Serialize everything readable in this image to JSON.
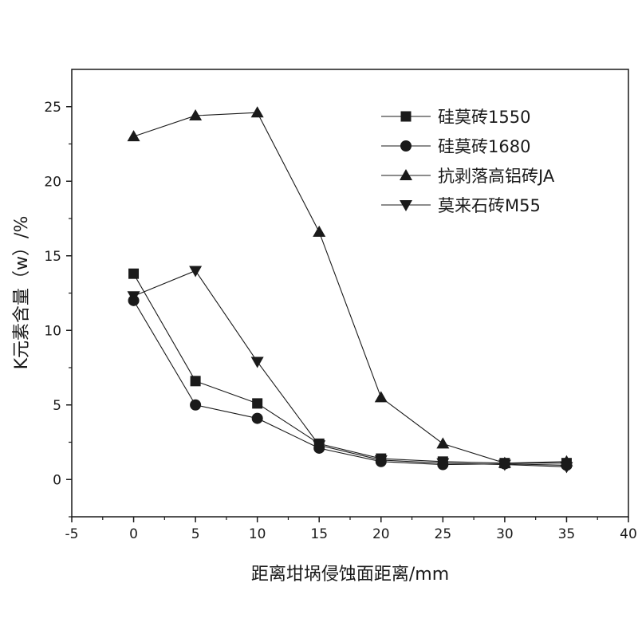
{
  "chart_data": {
    "type": "line",
    "title": "",
    "xlabel": "距离坩埚侵蚀面距离/mm",
    "ylabel": "K元素含量（w）/%",
    "xlim": [
      -5,
      40
    ],
    "ylim": [
      -2.5,
      27.5
    ],
    "xticks": [
      -5,
      0,
      5,
      10,
      15,
      20,
      25,
      30,
      35,
      40
    ],
    "yticks": [
      0,
      5,
      10,
      15,
      20,
      25
    ],
    "grid": false,
    "legend_position": "top-right",
    "line_color": "#1a1a1a",
    "series": [
      {
        "name": "硅莫砖1550",
        "marker": "square",
        "x": [
          0,
          5,
          10,
          15,
          20,
          25,
          30,
          35
        ],
        "y": [
          13.8,
          6.6,
          5.1,
          2.4,
          1.4,
          1.2,
          1.1,
          1.1
        ]
      },
      {
        "name": "硅莫砖1680",
        "marker": "circle",
        "x": [
          0,
          5,
          10,
          15,
          20,
          25,
          30,
          35
        ],
        "y": [
          12.0,
          5.0,
          4.1,
          2.1,
          1.2,
          1.0,
          1.05,
          0.95
        ]
      },
      {
        "name": "抗剥落高铝砖JA",
        "marker": "triangle-up",
        "x": [
          0,
          5,
          10,
          15,
          20,
          25,
          30,
          35
        ],
        "y": [
          23.0,
          24.4,
          24.6,
          16.6,
          5.5,
          2.4,
          1.1,
          1.2
        ]
      },
      {
        "name": "莫来石砖M55",
        "marker": "triangle-down",
        "x": [
          0,
          5,
          10,
          15,
          20,
          25,
          30,
          35
        ],
        "y": [
          12.3,
          14.0,
          7.9,
          2.3,
          1.3,
          1.1,
          1.0,
          0.85
        ]
      }
    ]
  }
}
